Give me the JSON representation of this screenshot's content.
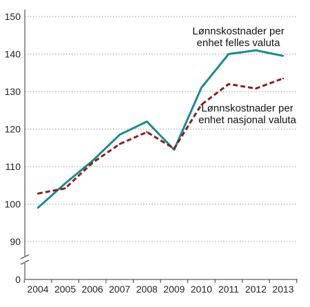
{
  "chart_data": {
    "type": "line",
    "title": "",
    "xlabel": "",
    "ylabel": "",
    "x": [
      "2004",
      "2005",
      "2006",
      "2007",
      "2008",
      "2009",
      "2010",
      "2011",
      "2012",
      "2013"
    ],
    "y_ticks": [
      "0",
      "90",
      "100",
      "110",
      "120",
      "130",
      "140",
      "150"
    ],
    "ylim": [
      90,
      150
    ],
    "axis_break": true,
    "grid": "horizontal dotted",
    "series": [
      {
        "name": "Lønnskostnader per enhet felles valuta",
        "color": "#1a8a92",
        "style": "solid",
        "values": [
          99.0,
          105.5,
          111.5,
          118.5,
          122.0,
          114.5,
          131.0,
          140.0,
          141.0,
          139.5
        ]
      },
      {
        "name": "Lønnskostnader per enhet nasjonal valuta",
        "color": "#8b1e1e",
        "style": "dashed",
        "values": [
          102.8,
          104.2,
          111.0,
          116.0,
          119.2,
          114.8,
          126.5,
          132.0,
          130.8,
          133.5
        ]
      }
    ],
    "annotations": [
      {
        "series": 0,
        "lines": [
          "Lønnskostnader per",
          "enhet felles valuta"
        ]
      },
      {
        "series": 1,
        "lines": [
          "Lønnskostnader per",
          "enhet nasjonal valuta"
        ]
      }
    ]
  }
}
